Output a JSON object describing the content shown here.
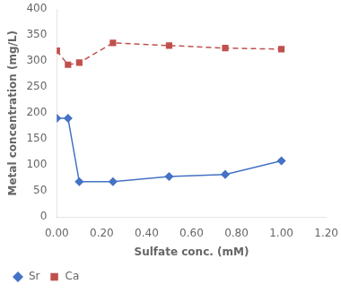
{
  "chart_data": {
    "type": "line",
    "xlabel": "Sulfate conc. (mM)",
    "ylabel": "Metal concentration (mg/L)",
    "x": [
      0.0,
      0.05,
      0.1,
      0.25,
      0.5,
      0.75,
      1.0
    ],
    "series": [
      {
        "name": "Sr",
        "color": "#4472c4",
        "marker": "diamond",
        "line_style": "solid",
        "values": [
          190,
          190,
          68,
          68,
          78,
          82,
          108
        ]
      },
      {
        "name": "Ca",
        "color": "#c0504d",
        "marker": "square",
        "line_style": "dashed",
        "values": [
          320,
          293,
          297,
          335,
          330,
          325,
          323
        ]
      }
    ],
    "xlim": [
      0,
      1.2
    ],
    "ylim": [
      0,
      400
    ],
    "xticks": [
      {
        "value": 0.0,
        "label": "0.00"
      },
      {
        "value": 0.2,
        "label": "0.20"
      },
      {
        "value": 0.4,
        "label": "0.40"
      },
      {
        "value": 0.6,
        "label": "0.60"
      },
      {
        "value": 0.8,
        "label": "0.80"
      },
      {
        "value": 1.0,
        "label": "1.00"
      },
      {
        "value": 1.2,
        "label": "1.20"
      }
    ],
    "yticks": [
      0,
      50,
      100,
      150,
      200,
      250,
      300,
      350,
      400
    ],
    "grid": false,
    "legend": "lower left"
  }
}
